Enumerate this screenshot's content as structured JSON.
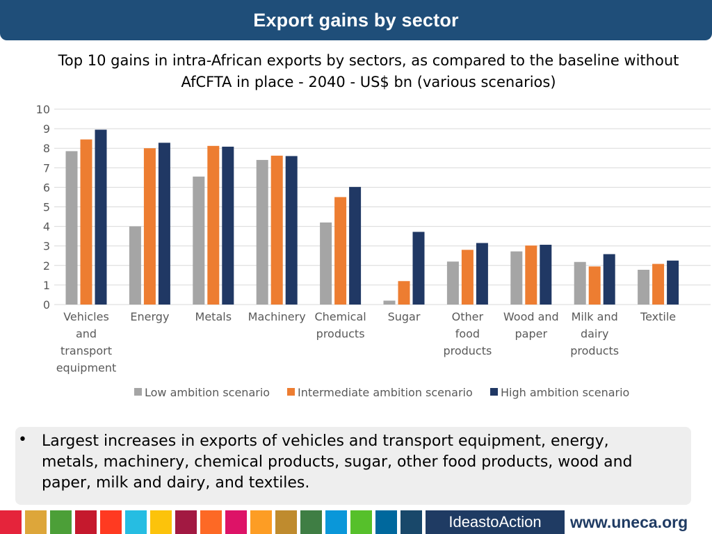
{
  "header": {
    "title": "Export gains by sector"
  },
  "chart_data": {
    "type": "bar",
    "title": "Top 10 gains in intra-African exports by sectors, as compared to the baseline without AfCFTA in place - 2040 - US$ bn (various scenarios)",
    "title_lines": [
      "Top 10 gains in intra-African exports by sectors, as compared to the baseline without",
      "AfCFTA in place - 2040 - US$ bn (various scenarios)"
    ],
    "categories": [
      "Vehicles and transport equipment",
      "Energy",
      "Metals",
      "Machinery",
      "Chemical products",
      "Sugar",
      "Other food products",
      "Wood and paper",
      "Milk and dairy products",
      "Textile"
    ],
    "category_lines": [
      [
        "Vehicles",
        "and",
        "transport",
        "equipment"
      ],
      [
        "Energy"
      ],
      [
        "Metals"
      ],
      [
        "Machinery"
      ],
      [
        "Chemical",
        "products"
      ],
      [
        "Sugar"
      ],
      [
        "Other",
        "food",
        "products"
      ],
      [
        "Wood and",
        "paper"
      ],
      [
        "Milk and",
        "dairy",
        "products"
      ],
      [
        "Textile"
      ]
    ],
    "series": [
      {
        "name": "Low ambition scenario",
        "color": "#a5a5a5",
        "values": [
          7.85,
          4.0,
          6.55,
          7.4,
          4.2,
          0.2,
          2.2,
          2.72,
          2.18,
          1.78
        ]
      },
      {
        "name": "Intermediate ambition scenario",
        "color": "#ed7d31",
        "values": [
          8.45,
          8.0,
          8.12,
          7.62,
          5.5,
          1.2,
          2.8,
          3.02,
          1.95,
          2.08
        ]
      },
      {
        "name": "High ambition scenario",
        "color": "#203864",
        "values": [
          8.95,
          8.28,
          8.08,
          7.6,
          6.02,
          3.72,
          3.15,
          3.06,
          2.58,
          2.25
        ]
      }
    ],
    "ylim": [
      0,
      10
    ],
    "yticks": [
      "0",
      "1",
      "2",
      "3",
      "4",
      "5",
      "6",
      "7",
      "8",
      "9",
      "10"
    ],
    "grid": true,
    "legend": "bottom"
  },
  "bullet": {
    "symbol": "•",
    "text": "Largest increases in exports of vehicles and transport equipment, energy, metals, machinery, chemical products, sugar, other food products, wood and paper, milk and dairy, and textiles."
  },
  "footer": {
    "sdg_colors": [
      "#e5243b",
      "#dda63a",
      "#4c9f38",
      "#c5192d",
      "#ff3a21",
      "#26bde2",
      "#fcc30b",
      "#a21942",
      "#fd6925",
      "#dd1367",
      "#fd9d24",
      "#bf8b2e",
      "#3f7e44",
      "#0a97d9",
      "#56c02b",
      "#00689d",
      "#19486a"
    ],
    "ideas_text": "IdeastoAction",
    "url": "www.uneca.org"
  }
}
